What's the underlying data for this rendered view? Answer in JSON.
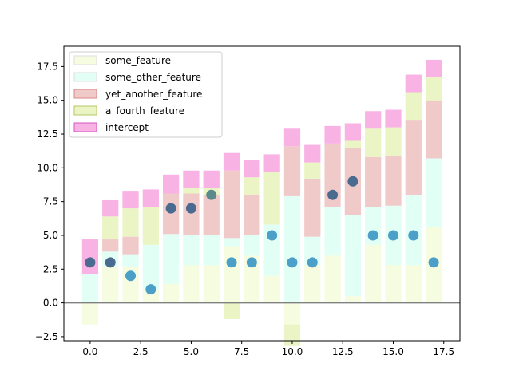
{
  "chart_data": {
    "type": "bar",
    "stacked": true,
    "title": "",
    "xlabel": "",
    "ylabel": "",
    "xlim": [
      -1.3,
      18.3
    ],
    "ylim": [
      -2.8,
      19.0
    ],
    "xticks": [
      0.0,
      2.5,
      5.0,
      7.5,
      10.0,
      12.5,
      15.0,
      17.5
    ],
    "xtick_labels": [
      "0.0",
      "2.5",
      "5.0",
      "7.5",
      "10.0",
      "12.5",
      "15.0",
      "17.5"
    ],
    "yticks": [
      -2.5,
      0.0,
      2.5,
      5.0,
      7.5,
      10.0,
      12.5,
      15.0,
      17.5
    ],
    "ytick_labels": [
      "−2.5",
      "0.0",
      "2.5",
      "5.0",
      "7.5",
      "10.0",
      "12.5",
      "15.0",
      "17.5"
    ],
    "grid": false,
    "legend_position": "top-left",
    "baseline_y": 0,
    "baseline_color": "#808080",
    "x": [
      0,
      1,
      2,
      3,
      4,
      5,
      6,
      7,
      8,
      9,
      10,
      11,
      12,
      13,
      14,
      15,
      16,
      17
    ],
    "series": [
      {
        "name": "some_feature",
        "color": "#f5fce0",
        "values": [
          -1.6,
          2.7,
          2.7,
          1.0,
          1.4,
          2.8,
          2.8,
          4.2,
          3.5,
          2.0,
          -1.6,
          2.8,
          3.5,
          0.5,
          4.3,
          2.8,
          2.8,
          5.6
        ]
      },
      {
        "name": "some_other_feature",
        "color": "#e2fff6",
        "values": [
          2.1,
          1.1,
          0.9,
          3.3,
          3.7,
          2.2,
          2.2,
          0.6,
          1.5,
          3.8,
          7.9,
          2.1,
          3.6,
          6.0,
          2.8,
          4.4,
          5.2,
          5.1
        ]
      },
      {
        "name": "yet_another_feature",
        "color": "#f0c9c9",
        "values": [
          0.0,
          0.9,
          1.3,
          0.0,
          3.0,
          3.1,
          3.0,
          5.0,
          3.0,
          0.0,
          3.7,
          4.3,
          4.7,
          5.0,
          3.7,
          3.7,
          5.5,
          4.3
        ]
      },
      {
        "name": "a_fourth_feature",
        "color": "#ebf4c4",
        "values": [
          0.0,
          1.7,
          2.1,
          2.8,
          0.0,
          0.4,
          0.5,
          -1.2,
          1.3,
          3.9,
          -1.6,
          1.2,
          0.0,
          0.5,
          2.1,
          2.1,
          2.1,
          1.7
        ]
      },
      {
        "name": "intercept",
        "color": "#f8b2e4",
        "values": [
          2.6,
          1.2,
          1.3,
          1.3,
          1.4,
          1.3,
          1.3,
          1.3,
          1.3,
          1.3,
          1.3,
          1.3,
          1.3,
          1.3,
          1.3,
          1.3,
          1.3,
          1.3
        ]
      }
    ],
    "points": {
      "y": [
        3,
        3,
        2,
        1,
        7,
        7,
        8,
        3,
        3,
        5,
        3,
        3,
        8,
        9,
        5,
        5,
        5,
        3
      ],
      "colors": [
        "#4a6b8f",
        "#4a6b8f",
        "#4b9fc8",
        "#4b9fc8",
        "#4a6b8f",
        "#4a6b8f",
        "#5a8a8c",
        "#4b9fc8",
        "#4b9fc8",
        "#4b9fc8",
        "#4b9fc8",
        "#4b9fc8",
        "#4a6b8f",
        "#4a6b8f",
        "#4b9fc8",
        "#4b9fc8",
        "#4b9fc8",
        "#4b9fc8"
      ]
    },
    "legend_border_colors": [
      "#dddddd",
      "#dddddd",
      "#d98888",
      "#b7c76a",
      "#d457c2"
    ]
  }
}
